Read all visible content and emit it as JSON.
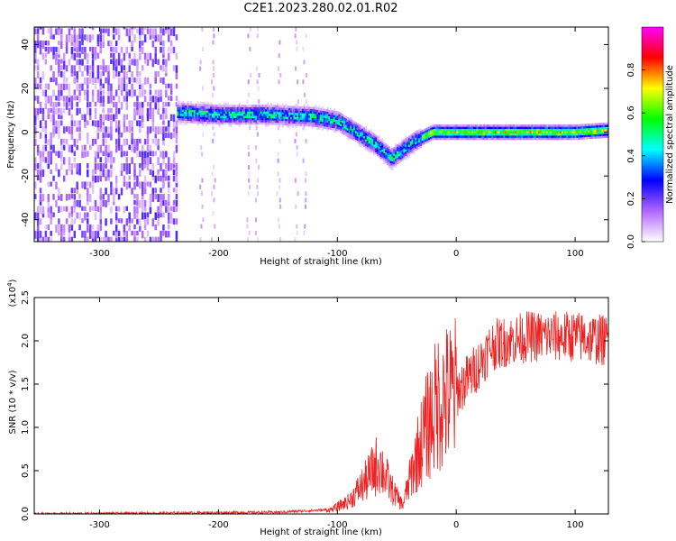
{
  "title": "C2E1.2023.280.02.01.R02",
  "chart_data": [
    {
      "type": "heatmap",
      "xlabel": "Height of straight line (km)",
      "ylabel": "Frequency (Hz)",
      "xlim": [
        -355,
        128
      ],
      "ylim": [
        -50,
        48
      ],
      "xticks": [
        -300,
        -200,
        -100,
        0,
        100
      ],
      "yticks": [
        -40,
        -20,
        0,
        20,
        40
      ],
      "colorbar": {
        "label": "Normalized spectral amplitude",
        "range": [
          0,
          1
        ],
        "ticks": [
          "0.0",
          "0.2",
          "0.4",
          "0.6",
          "0.8"
        ],
        "stops": [
          "#ffffff",
          "#b266ff",
          "#0000ff",
          "#00ffff",
          "#00ff00",
          "#ffff00",
          "#ff0000",
          "#ff00ff"
        ]
      },
      "ridge": [
        {
          "x": -235,
          "f": 9
        },
        {
          "x": -200,
          "f": 8
        },
        {
          "x": -160,
          "f": 8
        },
        {
          "x": -120,
          "f": 7
        },
        {
          "x": -100,
          "f": 5
        },
        {
          "x": -85,
          "f": 0
        },
        {
          "x": -70,
          "f": -5
        },
        {
          "x": -55,
          "f": -12
        },
        {
          "x": -45,
          "f": -8
        },
        {
          "x": -35,
          "f": -4
        },
        {
          "x": -20,
          "f": 0
        },
        {
          "x": 0,
          "f": 0
        },
        {
          "x": 50,
          "f": 0
        },
        {
          "x": 100,
          "f": 0
        },
        {
          "x": 128,
          "f": 1
        }
      ]
    },
    {
      "type": "line",
      "xlabel": "Height of straight line (km)",
      "ylabel": "SNR (10 * v/v)",
      "yscale_label": "(x10",
      "yscale_exp": "4",
      "yscale_close": ")",
      "xlim": [
        -355,
        128
      ],
      "ylim": [
        0,
        2.5
      ],
      "xticks": [
        -300,
        -200,
        -100,
        0,
        100
      ],
      "yticks": [
        "0.0",
        "0.5",
        "1.0",
        "1.5",
        "2.0",
        "2.5"
      ],
      "color": "#ee2222",
      "envelope": [
        {
          "x": -355,
          "y": 0.0
        },
        {
          "x": -150,
          "y": 0.02
        },
        {
          "x": -105,
          "y": 0.05
        },
        {
          "x": -90,
          "y": 0.15
        },
        {
          "x": -75,
          "y": 0.4
        },
        {
          "x": -65,
          "y": 0.6
        },
        {
          "x": -55,
          "y": 0.3
        },
        {
          "x": -45,
          "y": 0.1
        },
        {
          "x": -35,
          "y": 0.6
        },
        {
          "x": -25,
          "y": 1.0
        },
        {
          "x": -15,
          "y": 1.3
        },
        {
          "x": 0,
          "y": 1.4
        },
        {
          "x": 15,
          "y": 1.65
        },
        {
          "x": 30,
          "y": 1.95
        },
        {
          "x": 60,
          "y": 2.05
        },
        {
          "x": 100,
          "y": 2.05
        },
        {
          "x": 128,
          "y": 2.0
        }
      ]
    }
  ]
}
